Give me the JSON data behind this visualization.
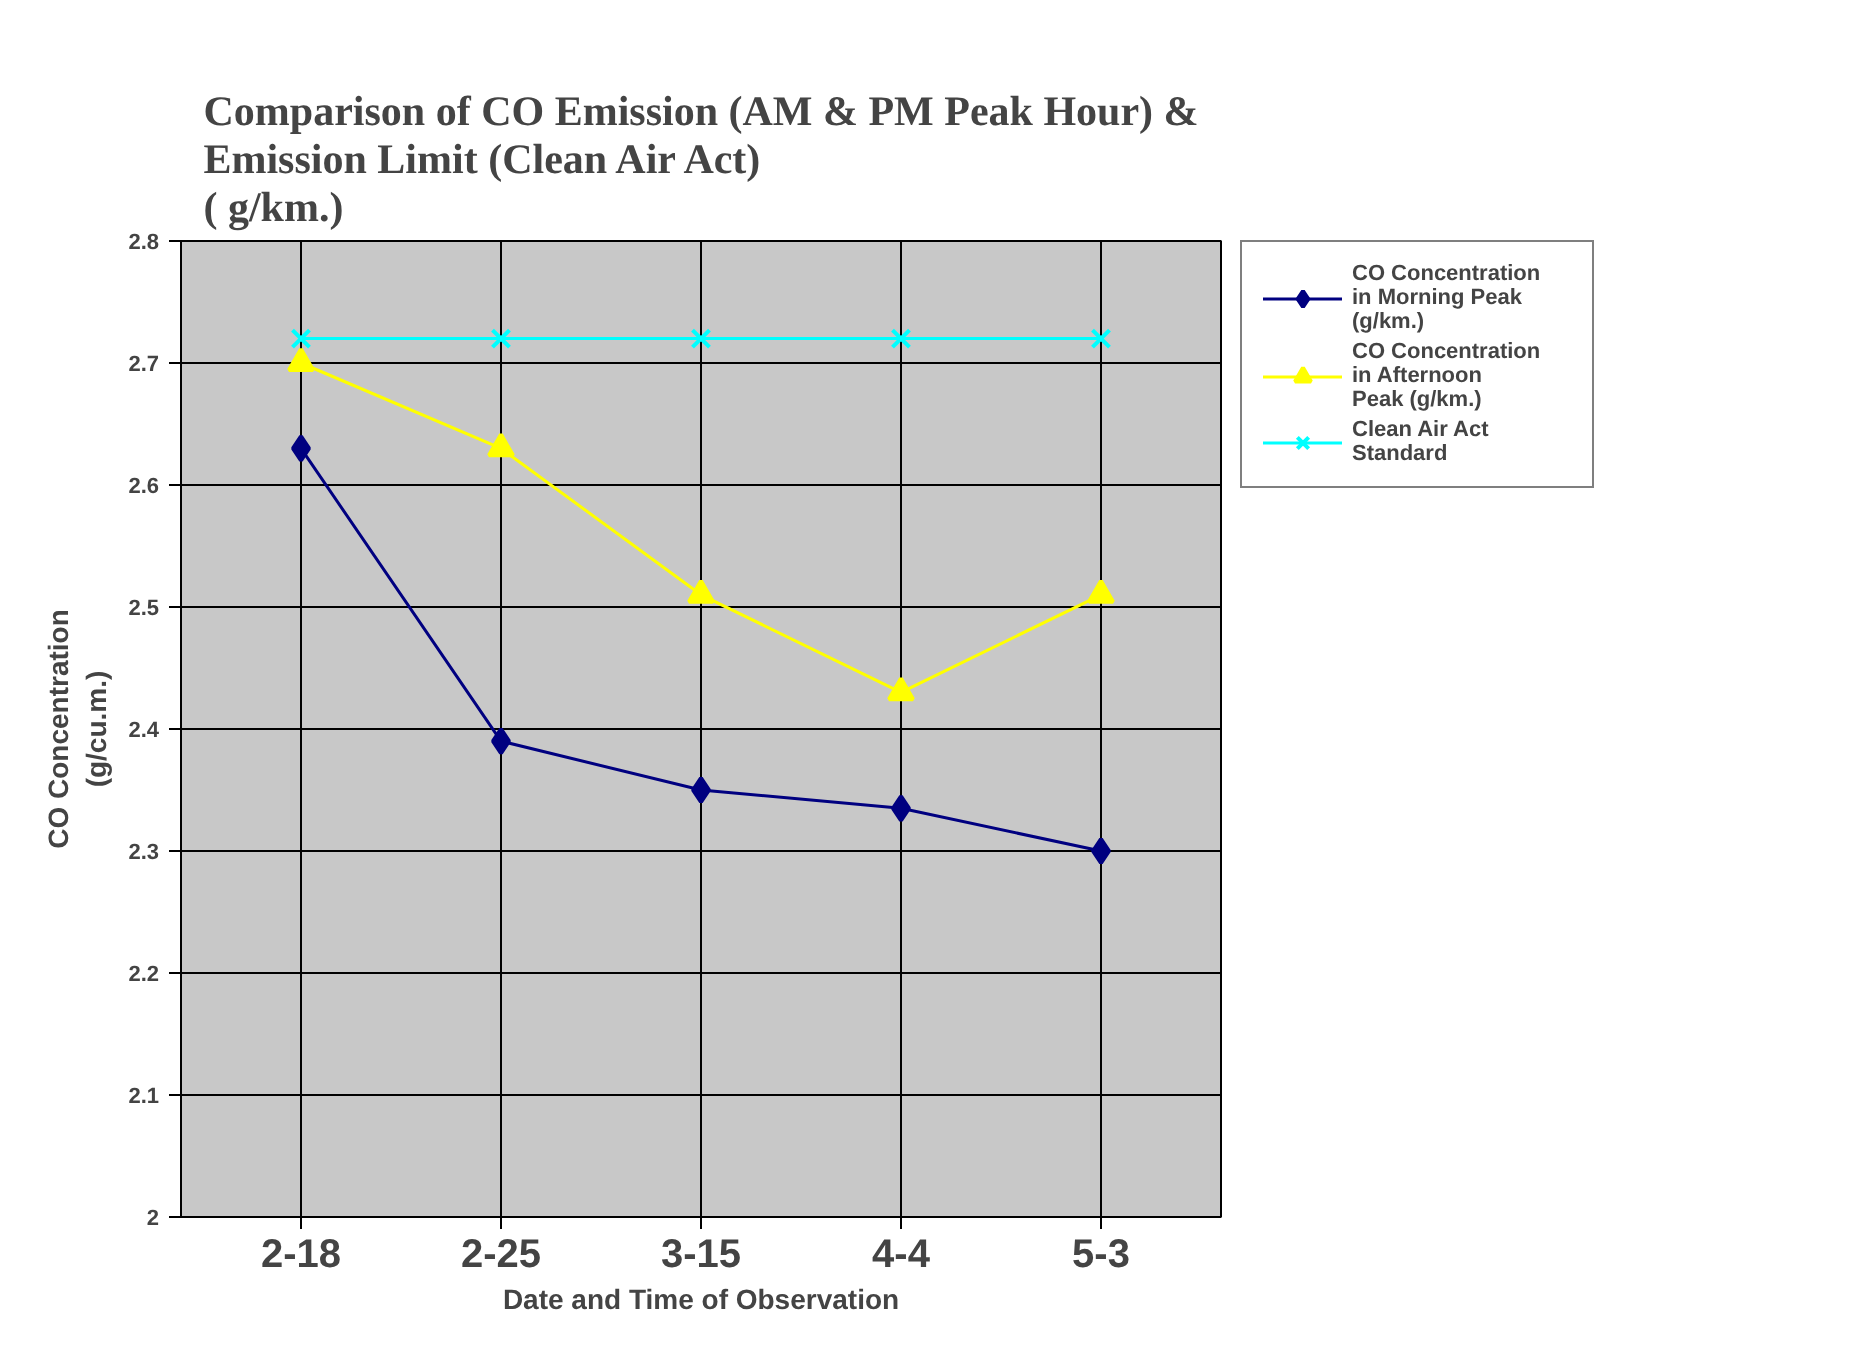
{
  "chart_data": {
    "type": "line",
    "title": "Comparison of CO Emission (AM & PM Peak Hour) &\nEmission Limit (Clean Air Act)\n( g/km.)",
    "xlabel": "Date and Time of Observation",
    "ylabel": "CO Concentration\n(g/cu.m.)",
    "categories": [
      "2-18",
      "2-25",
      "3-15",
      "4-4",
      "5-3"
    ],
    "series": [
      {
        "name": "CO Concentration in Morning Peak (g/km.)",
        "color": "#000080",
        "marker": "diamond",
        "values": [
          2.63,
          2.39,
          2.35,
          2.335,
          2.3
        ]
      },
      {
        "name": "CO Concentration in Afternoon Peak (g/km.)",
        "color": "#ffff00",
        "marker": "triangle",
        "values": [
          2.7,
          2.63,
          2.51,
          2.43,
          2.51
        ]
      },
      {
        "name": "Clean Air Act Standard",
        "color": "#00ffff",
        "marker": "x",
        "values": [
          2.72,
          2.72,
          2.72,
          2.72,
          2.72
        ]
      }
    ],
    "ylim": [
      2,
      2.8
    ],
    "yticks": [
      2,
      2.1,
      2.2,
      2.3,
      2.4,
      2.5,
      2.6,
      2.7,
      2.8
    ],
    "grid": true,
    "legend": "right"
  }
}
